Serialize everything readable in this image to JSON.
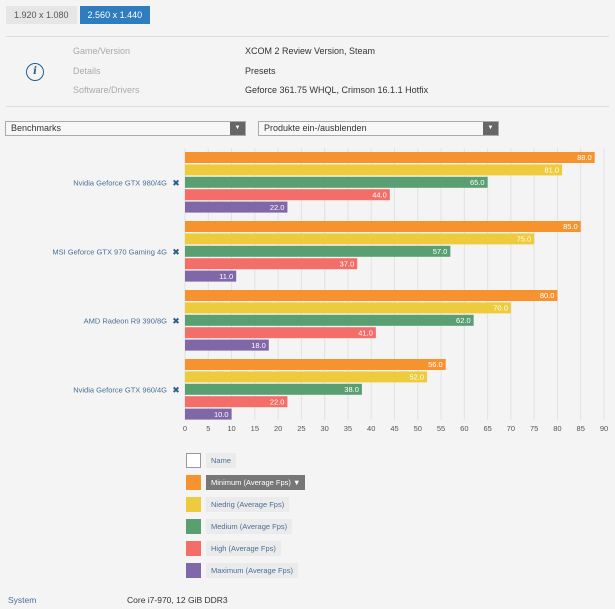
{
  "resolution_tabs": [
    {
      "label": "1.920 x 1.080",
      "active": false
    },
    {
      "label": "2.560 x 1.440",
      "active": true
    }
  ],
  "info": {
    "icon": "info-icon",
    "rows": [
      {
        "label": "Game/Version",
        "value": "XCOM 2 Review Version, Steam"
      },
      {
        "label": "Details",
        "value": "Presets"
      },
      {
        "label": "Software/Drivers",
        "value": "Geforce 361.75 WHQL, Crimson 16.1.1 Hotfix"
      }
    ]
  },
  "selects": {
    "benchmarks": {
      "value": "Benchmarks"
    },
    "products": {
      "value": "Produkte ein-/ausblenden"
    }
  },
  "remove_icon": "close-x-icon",
  "legend": {
    "name_label": "Name",
    "sort_arrow": "▼"
  },
  "system": {
    "label": "System",
    "value": "Core i7-970, 12 GiB DDR3"
  },
  "chart_data": {
    "type": "bar",
    "orientation": "horizontal",
    "title": "",
    "xlabel": "",
    "ylabel": "",
    "xlim": [
      0,
      90
    ],
    "x_ticks": [
      0,
      5,
      10,
      15,
      20,
      25,
      30,
      35,
      40,
      45,
      50,
      55,
      60,
      65,
      70,
      75,
      80,
      85,
      90
    ],
    "grid": true,
    "categories": [
      "Nvidia Geforce GTX 980/4G",
      "MSI Geforce GTX 970 Gaming 4G",
      "AMD Radeon R9 390/8G",
      "Nvidia Geforce GTX 960/4G"
    ],
    "series": [
      {
        "name": "Minimum (Average Fps)",
        "color": "#f7932f",
        "values": [
          88.0,
          85.0,
          80.0,
          56.0
        ],
        "sorted_by": true
      },
      {
        "name": "Niedrig (Average Fps)",
        "color": "#eecb3c",
        "values": [
          81.0,
          75.0,
          70.0,
          52.0
        ]
      },
      {
        "name": "Medium (Average Fps)",
        "color": "#5a9f72",
        "values": [
          65.0,
          57.0,
          62.0,
          38.0
        ]
      },
      {
        "name": "High (Average Fps)",
        "color": "#f36e69",
        "values": [
          44.0,
          37.0,
          41.0,
          22.0
        ]
      },
      {
        "name": "Maximum (Average Fps)",
        "color": "#8067a8",
        "values": [
          22.0,
          11.0,
          18.0,
          10.0
        ]
      }
    ],
    "legend_position": "bottom-left"
  }
}
